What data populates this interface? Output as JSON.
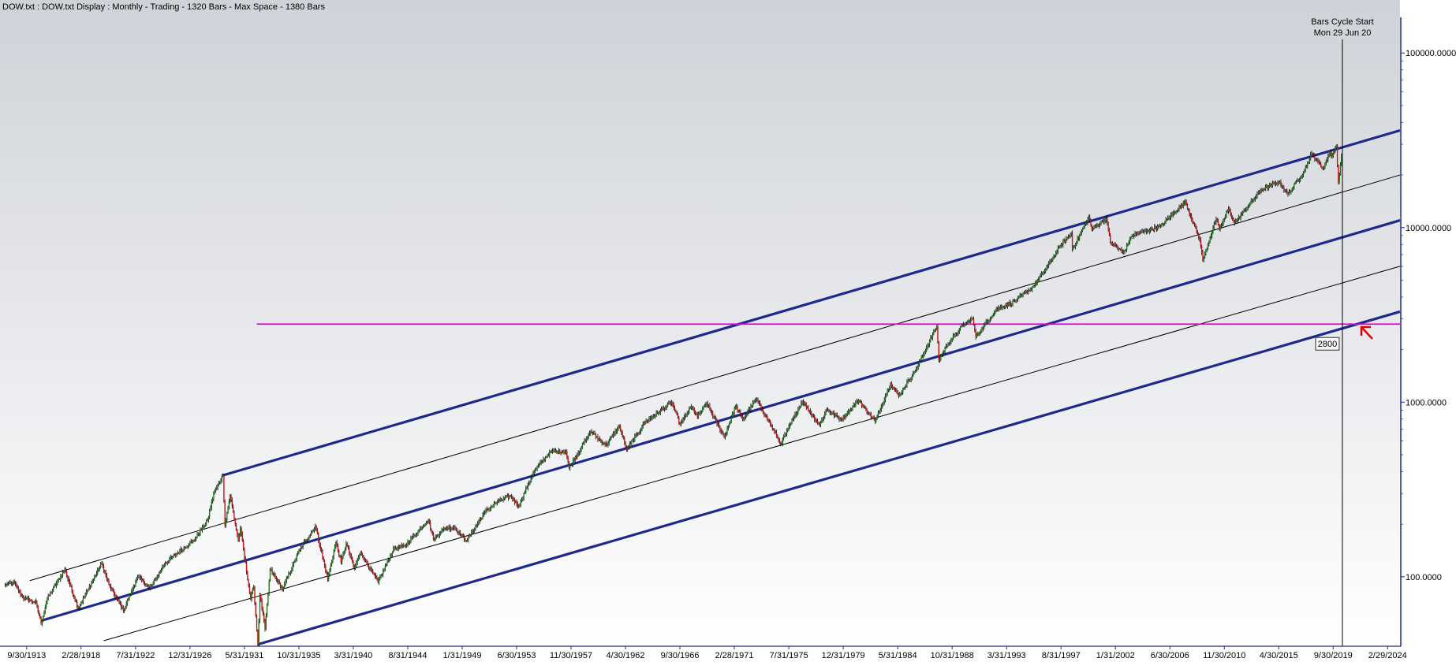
{
  "header": {
    "title": "DOW.txt : DOW.txt Display :  Monthly  - Trading - 1320 Bars -  Max Space - 1380 Bars"
  },
  "cycle_marker": {
    "line1": "Bars Cycle Start",
    "line2": "Mon 29 Jun 20",
    "date": "2020-06-29"
  },
  "price_callout": {
    "label": "2800",
    "value": 2800
  },
  "colors": {
    "background_top": "#cfd2d8",
    "background_bottom": "#ffffff",
    "channel_main": "#1d2a8c",
    "channel_mid": "#000000",
    "horizontal_level": "#e000e0",
    "arrow": "#e00000",
    "candle_up": "#1a7a1a",
    "candle_down": "#d01010",
    "axis": "#1d2a8c"
  },
  "chart_data": {
    "type": "candlestick",
    "title": "",
    "xlabel": "",
    "ylabel": "",
    "y_scale": "log",
    "ylim": [
      40,
      160000
    ],
    "xlim": [
      "1911-08-01",
      "2025-03-01"
    ],
    "grid": false,
    "y_ticks": [
      {
        "value": 100,
        "label": "100.0000"
      },
      {
        "value": 1000,
        "label": "1000.0000"
      },
      {
        "value": 10000,
        "label": "10000.0000"
      },
      {
        "value": 100000,
        "label": "100000.0000"
      }
    ],
    "x_ticks": [
      {
        "date": "1913-09-30",
        "label": "9/30/1913"
      },
      {
        "date": "1918-02-28",
        "label": "2/28/1918"
      },
      {
        "date": "1922-07-31",
        "label": "7/31/1922"
      },
      {
        "date": "1926-12-31",
        "label": "12/31/1926"
      },
      {
        "date": "1931-05-31",
        "label": "5/31/1931"
      },
      {
        "date": "1935-10-31",
        "label": "10/31/1935"
      },
      {
        "date": "1940-03-31",
        "label": "3/31/1940"
      },
      {
        "date": "1944-08-31",
        "label": "8/31/1944"
      },
      {
        "date": "1949-01-31",
        "label": "1/31/1949"
      },
      {
        "date": "1953-06-30",
        "label": "6/30/1953"
      },
      {
        "date": "1957-11-30",
        "label": "11/30/1957"
      },
      {
        "date": "1962-04-30",
        "label": "4/30/1962"
      },
      {
        "date": "1966-09-30",
        "label": "9/30/1966"
      },
      {
        "date": "1971-02-28",
        "label": "2/28/1971"
      },
      {
        "date": "1975-07-31",
        "label": "7/31/1975"
      },
      {
        "date": "1979-12-31",
        "label": "12/31/1979"
      },
      {
        "date": "1984-05-31",
        "label": "5/31/1984"
      },
      {
        "date": "1988-10-31",
        "label": "10/31/1988"
      },
      {
        "date": "1993-03-31",
        "label": "3/31/1993"
      },
      {
        "date": "1997-08-31",
        "label": "8/31/1997"
      },
      {
        "date": "2002-01-31",
        "label": "1/31/2002"
      },
      {
        "date": "2006-06-30",
        "label": "6/30/2006"
      },
      {
        "date": "2010-11-30",
        "label": "11/30/2010"
      },
      {
        "date": "2015-04-30",
        "label": "4/30/2015"
      },
      {
        "date": "2019-09-30",
        "label": "9/30/2019"
      },
      {
        "date": "2024-02-29",
        "label": "2/29/2024"
      }
    ],
    "price_path": [
      [
        "1912-01",
        90
      ],
      [
        "1912-10",
        92
      ],
      [
        "1913-06",
        76
      ],
      [
        "1914-07",
        71
      ],
      [
        "1914-12",
        54
      ],
      [
        "1915-06",
        75
      ],
      [
        "1916-11",
        110
      ],
      [
        "1917-12",
        66
      ],
      [
        "1918-10",
        85
      ],
      [
        "1919-11",
        119
      ],
      [
        "1920-06",
        90
      ],
      [
        "1921-08",
        64
      ],
      [
        "1922-10",
        100
      ],
      [
        "1923-10",
        86
      ],
      [
        "1925-01",
        120
      ],
      [
        "1926-03",
        140
      ],
      [
        "1927-06",
        165
      ],
      [
        "1928-06",
        210
      ],
      [
        "1928-12",
        300
      ],
      [
        "1929-09",
        381
      ],
      [
        "1929-11",
        198
      ],
      [
        "1930-04",
        294
      ],
      [
        "1930-12",
        160
      ],
      [
        "1931-02",
        190
      ],
      [
        "1931-12",
        74
      ],
      [
        "1932-03",
        88
      ],
      [
        "1932-07",
        41
      ],
      [
        "1932-09",
        79
      ],
      [
        "1933-02",
        50
      ],
      [
        "1933-07",
        110
      ],
      [
        "1934-07",
        85
      ],
      [
        "1935-12",
        144
      ],
      [
        "1937-03",
        195
      ],
      [
        "1938-03",
        97
      ],
      [
        "1938-11",
        158
      ],
      [
        "1939-04",
        121
      ],
      [
        "1939-09",
        155
      ],
      [
        "1940-05",
        112
      ],
      [
        "1940-11",
        138
      ],
      [
        "1942-04",
        93
      ],
      [
        "1943-07",
        145
      ],
      [
        "1944-06",
        150
      ],
      [
        "1946-05",
        212
      ],
      [
        "1946-10",
        163
      ],
      [
        "1947-07",
        187
      ],
      [
        "1948-06",
        193
      ],
      [
        "1949-06",
        161
      ],
      [
        "1950-12",
        235
      ],
      [
        "1951-12",
        269
      ],
      [
        "1953-01",
        290
      ],
      [
        "1953-09",
        255
      ],
      [
        "1954-12",
        404
      ],
      [
        "1956-04",
        521
      ],
      [
        "1957-07",
        520
      ],
      [
        "1957-10",
        420
      ],
      [
        "1959-07",
        678
      ],
      [
        "1960-10",
        566
      ],
      [
        "1961-11",
        734
      ],
      [
        "1962-06",
        535
      ],
      [
        "1963-12",
        766
      ],
      [
        "1966-02",
        995
      ],
      [
        "1966-10",
        744
      ],
      [
        "1967-09",
        943
      ],
      [
        "1968-03",
        825
      ],
      [
        "1968-12",
        985
      ],
      [
        "1970-05",
        631
      ],
      [
        "1971-04",
        950
      ],
      [
        "1971-11",
        797
      ],
      [
        "1972-12",
        1036
      ],
      [
        "1973-12",
        788
      ],
      [
        "1974-12",
        577
      ],
      [
        "1976-09",
        1014
      ],
      [
        "1978-02",
        742
      ],
      [
        "1978-09",
        907
      ],
      [
        "1979-11",
        796
      ],
      [
        "1981-04",
        1024
      ],
      [
        "1982-08",
        776
      ],
      [
        "1983-11",
        1287
      ],
      [
        "1984-07",
        1086
      ],
      [
        "1985-12",
        1550
      ],
      [
        "1987-08",
        2722
      ],
      [
        "1987-10",
        1738
      ],
      [
        "1988-06",
        2130
      ],
      [
        "1989-10",
        2790
      ],
      [
        "1990-07",
        2999
      ],
      [
        "1990-10",
        2365
      ],
      [
        "1992-06",
        3400
      ],
      [
        "1993-12",
        3800
      ],
      [
        "1995-06",
        4600
      ],
      [
        "1996-06",
        5800
      ],
      [
        "1997-08",
        7800
      ],
      [
        "1998-07",
        9300
      ],
      [
        "1998-08",
        7500
      ],
      [
        "1999-12",
        11500
      ],
      [
        "2000-03",
        9800
      ],
      [
        "2001-05",
        11300
      ],
      [
        "2001-09",
        8200
      ],
      [
        "2002-10",
        7200
      ],
      [
        "2003-06",
        9000
      ],
      [
        "2005-10",
        10200
      ],
      [
        "2007-10",
        14100
      ],
      [
        "2008-12",
        8500
      ],
      [
        "2009-03",
        6500
      ],
      [
        "2010-04",
        11200
      ],
      [
        "2010-07",
        9700
      ],
      [
        "2011-04",
        12800
      ],
      [
        "2011-10",
        10600
      ],
      [
        "2013-12",
        16500
      ],
      [
        "2015-05",
        18300
      ],
      [
        "2016-02",
        15500
      ],
      [
        "2017-06",
        21300
      ],
      [
        "2018-01",
        26600
      ],
      [
        "2018-12",
        21700
      ],
      [
        "2019-07",
        27300
      ],
      [
        "2019-08",
        25300
      ],
      [
        "2020-01",
        29500
      ],
      [
        "2020-03",
        18200
      ],
      [
        "2020-06",
        25800
      ]
    ],
    "channel_lines": [
      {
        "name": "",
        "style": "thick",
        "from": [
          "1929-09",
          381
        ],
        "to": [
          "2025-03",
          36000
        ]
      },
      {
        "name": "",
        "style": "thin",
        "from": [
          "1914-01",
          95
        ],
        "to": [
          "2025-03",
          20000
        ]
      },
      {
        "name": "",
        "style": "thick",
        "from": [
          "1914-12",
          56
        ],
        "to": [
          "2025-03",
          11000
        ]
      },
      {
        "name": "",
        "style": "thin",
        "from": [
          "1920-01",
          43
        ],
        "to": [
          "2025-03",
          6000
        ]
      },
      {
        "name": "",
        "style": "thick",
        "from": [
          "1932-07",
          41
        ],
        "to": [
          "2025-03",
          3300
        ]
      }
    ],
    "horizontal_levels": [
      {
        "name": "",
        "value": 2800,
        "from": "1932-06",
        "to": "2025-03"
      }
    ],
    "vertical_markers": [
      {
        "date": "2020-06-29"
      }
    ]
  }
}
